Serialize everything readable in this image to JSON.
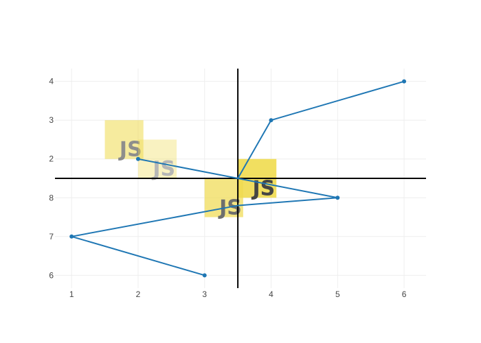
{
  "chart_data": {
    "type": "line",
    "x_ticks": [
      "1",
      "2",
      "3",
      "4",
      "5",
      "6"
    ],
    "y_ticks_top": [
      "2",
      "3",
      "4"
    ],
    "y_ticks_bottom": [
      "6",
      "7",
      "8"
    ],
    "xlim": [
      0.75,
      6.33
    ],
    "grid": true,
    "series": [
      {
        "panel": "top",
        "ylim": [
          1.5,
          4.33
        ],
        "x": [
          2,
          3.5,
          4,
          6
        ],
        "y": [
          2,
          1.5,
          3,
          4
        ],
        "marker_at": [
          true,
          false,
          true,
          true
        ]
      },
      {
        "panel": "bottom",
        "ylim": [
          5.67,
          8.5
        ],
        "x": [
          3,
          1,
          3.5,
          5,
          3.5
        ],
        "y": [
          6,
          7,
          7.8,
          8,
          8.5
        ],
        "marker_at": [
          true,
          true,
          false,
          true,
          false
        ]
      }
    ],
    "divider_x": 3.5,
    "line_color": "#1f77b4",
    "axis_line_color": "#000000",
    "grid_color": "#eeeeee",
    "images": [
      {
        "name": "js-logo-1",
        "text": "JS",
        "x": 1.5,
        "y": 3,
        "w": 0.58,
        "h": 1,
        "panel": "top",
        "opacity": 0.55
      },
      {
        "name": "js-logo-2",
        "text": "JS",
        "x": 2.0,
        "y": 2.5,
        "w": 0.58,
        "h": 1,
        "panel": "top",
        "opacity": 0.35
      },
      {
        "name": "js-logo-3",
        "text": "JS",
        "x": 3.5,
        "y": 2,
        "w": 0.58,
        "h": 1,
        "panel": "top",
        "opacity": 0.9
      },
      {
        "name": "js-logo-4",
        "text": "JS",
        "x": 3.0,
        "y": 8.5,
        "w": 0.58,
        "h": 1,
        "panel": "bottom",
        "opacity": 0.7
      }
    ],
    "logo_bg_color": "#f0db4f",
    "logo_text_color": "#323330"
  }
}
